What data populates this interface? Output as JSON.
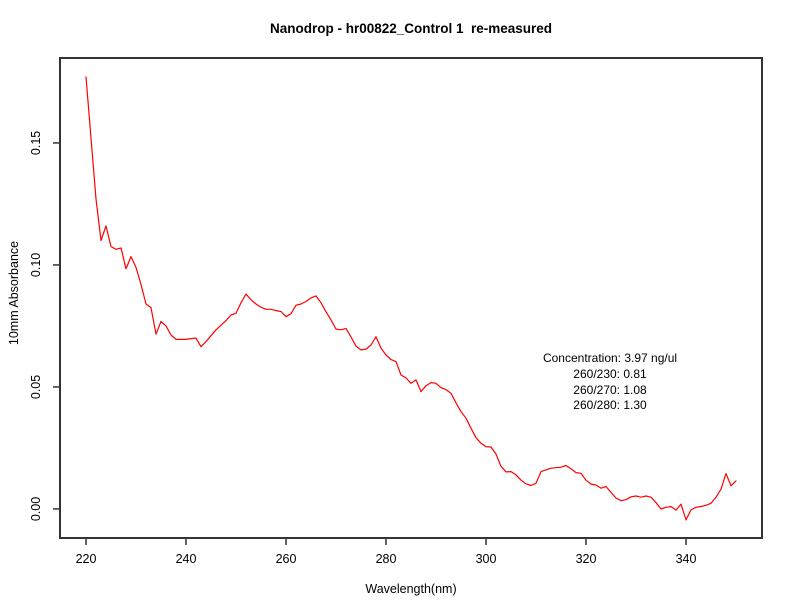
{
  "title": "Nanodrop - hr00822_Control 1  re-measured",
  "annotation": {
    "lines": [
      "Concentration: 3.97 ng/ul",
      "260/230: 0.81",
      "260/270: 1.08",
      "260/280: 1.30"
    ]
  },
  "chart_data": {
    "type": "line",
    "title": "Nanodrop - hr00822_Control 1  re-measured",
    "xlabel": "Wavelength(nm)",
    "ylabel": "10mm Absorbance",
    "xlim": [
      214.8,
      355.2
    ],
    "ylim": [
      -0.0119,
      0.1848
    ],
    "x_tick_values": [
      220,
      240,
      260,
      280,
      300,
      320,
      340
    ],
    "x_tick_labels": [
      "220",
      "240",
      "260",
      "280",
      "300",
      "320",
      "340"
    ],
    "y_tick_values": [
      0.0,
      0.05,
      0.1,
      0.15
    ],
    "y_tick_labels": [
      "0.00",
      "0.05",
      "0.10",
      "0.15"
    ],
    "grid": false,
    "legend_position": "none",
    "axis_color": "#333333",
    "annotation_text": [
      "Concentration: 3.97 ng/ul",
      "260/230: 0.81",
      "260/270: 1.08",
      "260/280: 1.30"
    ],
    "series": [
      {
        "name": "absorbance-spectrum",
        "color": "#ff0000",
        "x_start": 220,
        "x_step": 1,
        "values": [
          0.177,
          0.152,
          0.127,
          0.11,
          0.116,
          0.1075,
          0.1064,
          0.107,
          0.0984,
          0.1034,
          0.099,
          0.092,
          0.084,
          0.0825,
          0.0716,
          0.0768,
          0.075,
          0.0713,
          0.0695,
          0.0695,
          0.0695,
          0.0698,
          0.07,
          0.0665,
          0.0686,
          0.071,
          0.0734,
          0.0753,
          0.0772,
          0.0795,
          0.0802,
          0.0845,
          0.0881,
          0.0857,
          0.084,
          0.0827,
          0.0818,
          0.0818,
          0.0813,
          0.0809,
          0.0788,
          0.08,
          0.0835,
          0.084,
          0.085,
          0.0865,
          0.0873,
          0.0845,
          0.0808,
          0.0775,
          0.0737,
          0.0734,
          0.074,
          0.0705,
          0.0667,
          0.0652,
          0.0655,
          0.0672,
          0.0706,
          0.0659,
          0.0631,
          0.0612,
          0.0604,
          0.0549,
          0.0537,
          0.0515,
          0.0529,
          0.0481,
          0.0505,
          0.0518,
          0.0515,
          0.0497,
          0.0489,
          0.0474,
          0.0435,
          0.0399,
          0.0372,
          0.0331,
          0.0292,
          0.0269,
          0.0255,
          0.0254,
          0.0225,
          0.0175,
          0.0152,
          0.0153,
          0.014,
          0.0118,
          0.0103,
          0.0096,
          0.0105,
          0.0153,
          0.016,
          0.0167,
          0.0169,
          0.0171,
          0.0178,
          0.0165,
          0.0149,
          0.0146,
          0.0118,
          0.0102,
          0.0098,
          0.0085,
          0.0092,
          0.0068,
          0.0045,
          0.0034,
          0.0038,
          0.005,
          0.0053,
          0.0048,
          0.0053,
          0.0048,
          0.0026,
          0.0,
          0.0007,
          0.001,
          -0.0005,
          0.002,
          -0.0045,
          -0.0004,
          0.0007,
          0.001,
          0.0015,
          0.0023,
          0.0048,
          0.0081,
          0.0145,
          0.0095,
          0.0115
        ]
      }
    ]
  }
}
